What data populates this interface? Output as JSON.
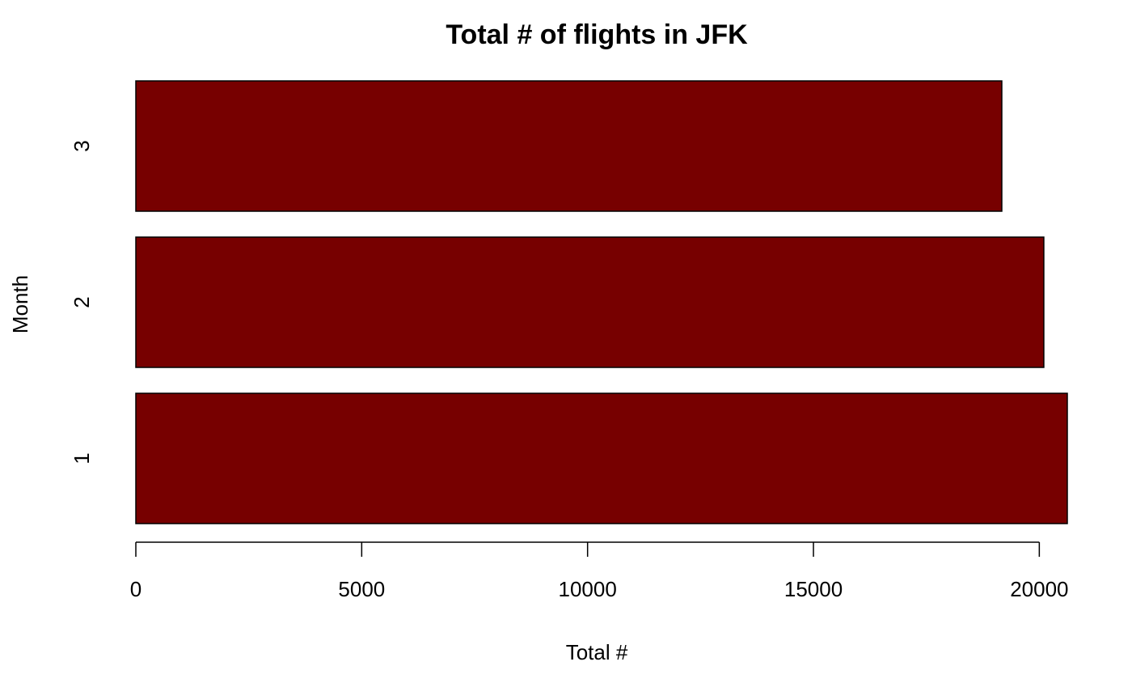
{
  "chart_data": {
    "type": "bar",
    "orientation": "horizontal",
    "title": "Total # of flights in JFK",
    "xlabel": "Total #",
    "ylabel": "Month",
    "categories": [
      "1",
      "2",
      "3"
    ],
    "values": [
      20620,
      20100,
      19170
    ],
    "xlim": [
      0,
      20620
    ],
    "x_ticks": [
      0,
      5000,
      10000,
      15000,
      20000
    ],
    "x_tick_labels": [
      "0",
      "5000",
      "10000",
      "15000",
      "20000"
    ],
    "grid": false,
    "legend": "none",
    "colors": {
      "bar_fill": "#770000",
      "bar_stroke": "#000000",
      "axis": "#000000"
    }
  }
}
